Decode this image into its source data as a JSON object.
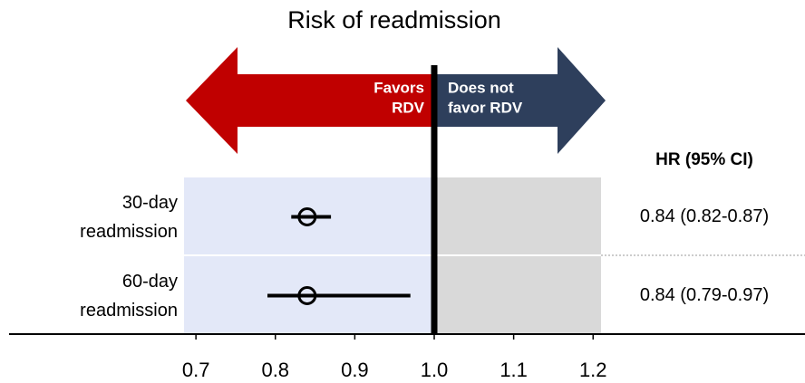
{
  "chart_data": {
    "type": "forest",
    "title": "Risk of readmission",
    "left_arrow_label": [
      "Favors",
      "RDV"
    ],
    "left_color": "#c00000",
    "left_shade": "#e3e8f8",
    "right_arrow_label": [
      "Does not",
      "favor RDV"
    ],
    "right_color": "#2e3f5c",
    "right_shade": "#d9d9d9",
    "column_header": "HR (95% CI)",
    "categories": [
      [
        "30-day",
        "readmission"
      ],
      [
        "60-day",
        "readmission"
      ]
    ],
    "values": [
      0.84,
      0.84
    ],
    "lower": [
      0.82,
      0.79
    ],
    "upper": [
      0.87,
      0.97
    ],
    "value_labels": [
      "0.84 (0.82-0.87)",
      "0.84 (0.79-0.97)"
    ],
    "reference": 1,
    "xlim": [
      0.685,
      1.21
    ],
    "xticks": [
      0.7,
      0.8,
      0.9,
      {
        "value": 1,
        "label": "1.0"
      },
      1.1,
      1.2
    ]
  }
}
